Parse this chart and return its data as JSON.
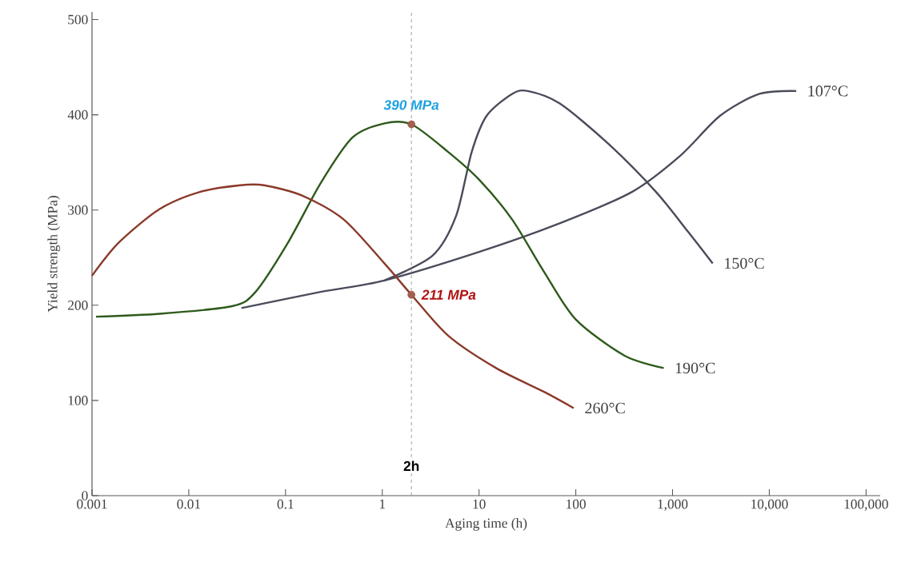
{
  "chart_data": {
    "type": "line",
    "xlabel": "Aging time (h)",
    "ylabel": "Yield strength (MPa)",
    "log": "x",
    "grid": false,
    "legend": false,
    "marker": "none",
    "xlim": [
      0.001,
      140000
    ],
    "ylim": [
      0,
      508
    ],
    "xticks": [
      0.001,
      0.01,
      0.1,
      1,
      10,
      100,
      {
        "value": 1000,
        "label": "1,000"
      },
      {
        "value": 10000,
        "label": "10,000"
      },
      {
        "value": 100000,
        "label": "100,000"
      }
    ],
    "yticks": [
      0,
      100,
      200,
      300,
      400,
      500
    ],
    "series": [
      {
        "name": "107°C",
        "color": "#4a4c5a",
        "x": [
          0.035,
          0.23,
          1.05,
          10,
          68,
          380,
          1200,
          3100,
          7900,
          19000
        ],
        "values": [
          197,
          214,
          226,
          256,
          286,
          319,
          357,
          399,
          422,
          425
        ]
      },
      {
        "name": "150°C",
        "color": "#4a4c5a",
        "x": [
          1.05,
          3.3,
          5.8,
          8.4,
          12,
          22,
          32,
          68,
          215,
          675,
          1450,
          2600
        ],
        "values": [
          226,
          252,
          294,
          361,
          399,
          422,
          425,
          412,
          370,
          319,
          277,
          244
        ]
      },
      {
        "name": "190°C",
        "color": "#2e5a1c",
        "x": [
          0.0011,
          0.005,
          0.028,
          0.049,
          0.105,
          0.23,
          0.49,
          1.05,
          2,
          4.8,
          10,
          22,
          47,
          100,
          320,
          810
        ],
        "values": [
          188,
          191,
          199,
          214,
          265,
          328,
          376,
          391,
          390,
          361,
          332,
          290,
          235,
          185,
          147,
          134
        ]
      },
      {
        "name": "260°C",
        "color": "#8b3a2a",
        "x": [
          0.001,
          0.0019,
          0.005,
          0.013,
          0.034,
          0.06,
          0.15,
          0.4,
          1.05,
          2,
          4.8,
          15,
          47,
          95
        ],
        "values": [
          231,
          266,
          301,
          319,
          326,
          326,
          315,
          290,
          244,
          211,
          168,
          134,
          109,
          92
        ]
      },
      {
        "type": "scatter",
        "marker": "circle",
        "color": "#8b3a2a",
        "x": [
          2,
          2
        ],
        "values": [
          390,
          211
        ]
      }
    ],
    "ref_lines": [
      {
        "axis": "x",
        "value": 2,
        "label": "2h",
        "color": "#999999",
        "line_style": "dashed"
      }
    ],
    "annotations": [
      {
        "text": "390 MPa",
        "x": 2,
        "y": 390
      },
      {
        "text": "211 MPa",
        "x": 2,
        "y": 211
      }
    ]
  }
}
